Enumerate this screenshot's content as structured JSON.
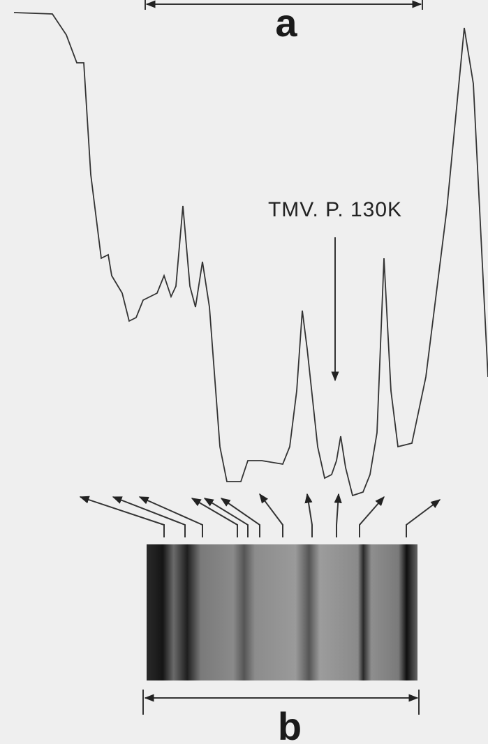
{
  "panel_a": {
    "label": "a"
  },
  "annotation": {
    "text": "TMV. P. 130K"
  },
  "panel_b": {
    "label": "b"
  }
}
